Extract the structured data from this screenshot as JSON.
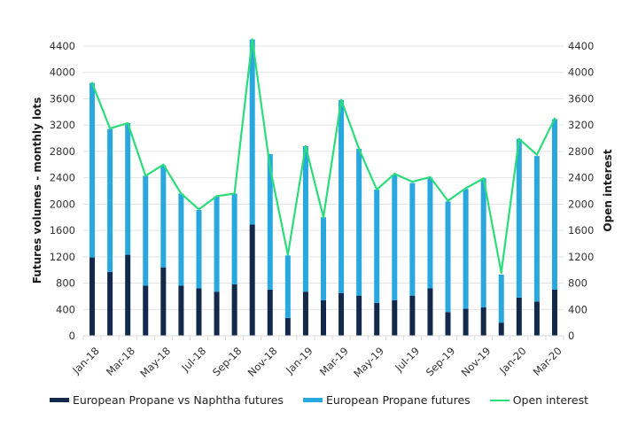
{
  "chart_data": {
    "type": "bar",
    "subtype": "stacked-bar-with-line",
    "title": "",
    "xlabel": "",
    "ylabel": "Futures volumes - monthly lots",
    "y2label": "Open interest",
    "ylim": [
      0,
      4400
    ],
    "y2lim": [
      0,
      4400
    ],
    "yticks": [
      0,
      400,
      800,
      1200,
      1600,
      2000,
      2400,
      2800,
      3200,
      3600,
      4000,
      4400
    ],
    "y2ticks": [
      0,
      400,
      800,
      1200,
      1600,
      2000,
      2400,
      2800,
      3200,
      3600,
      4000,
      4400
    ],
    "grid": true,
    "legend_position": "bottom",
    "categories": [
      "Jan-18",
      "Feb-18",
      "Mar-18",
      "Apr-18",
      "May-18",
      "Jun-18",
      "Jul-18",
      "Aug-18",
      "Sep-18",
      "Oct-18",
      "Nov-18",
      "Dec-18",
      "Jan-19",
      "Feb-19",
      "Mar-19",
      "Apr-19",
      "May-19",
      "Jun-19",
      "Jul-19",
      "Aug-19",
      "Sep-19",
      "Oct-19",
      "Nov-19",
      "Dec-19",
      "Jan-20",
      "Feb-20",
      "Mar-20"
    ],
    "xtick_labels": [
      "Jan-18",
      "Mar-18",
      "May-18",
      "Jul-18",
      "Sep-18",
      "Nov-18",
      "Jan-19",
      "Mar-19",
      "May-19",
      "Jul-19",
      "Sep-19",
      "Nov-19",
      "Jan-20",
      "Mar-20"
    ],
    "series": [
      {
        "name": "European Propane vs Naphtha futures",
        "type": "bar",
        "axis": "left",
        "color": "#13294b",
        "values": [
          1190,
          970,
          1230,
          760,
          1040,
          760,
          720,
          670,
          780,
          1690,
          700,
          270,
          670,
          540,
          650,
          610,
          500,
          540,
          610,
          720,
          360,
          410,
          430,
          200,
          580,
          520,
          700
        ]
      },
      {
        "name": "European Propane futures",
        "type": "bar",
        "axis": "left",
        "color": "#29a8df",
        "values": [
          2650,
          2170,
          2000,
          1670,
          1550,
          1400,
          1190,
          1450,
          1380,
          2810,
          2060,
          950,
          2210,
          1260,
          2930,
          2230,
          1720,
          1910,
          1710,
          1680,
          1680,
          1820,
          1960,
          730,
          2410,
          2210,
          2590
        ]
      },
      {
        "name": "Open interest",
        "type": "line",
        "axis": "right",
        "color": "#2bdc7a",
        "values": [
          3840,
          3150,
          3230,
          2430,
          2600,
          2160,
          1920,
          2120,
          2160,
          4500,
          2550,
          1230,
          2880,
          1800,
          3580,
          2840,
          2220,
          2460,
          2340,
          2410,
          2050,
          2240,
          2390,
          960,
          2990,
          2750,
          3300
        ]
      }
    ]
  },
  "legend": {
    "items": [
      {
        "label": "European Propane vs Naphtha futures",
        "color": "#13294b",
        "kind": "bar"
      },
      {
        "label": "European Propane futures",
        "color": "#29a8df",
        "kind": "bar"
      },
      {
        "label": "Open interest",
        "color": "#2bdc7a",
        "kind": "line"
      }
    ]
  }
}
